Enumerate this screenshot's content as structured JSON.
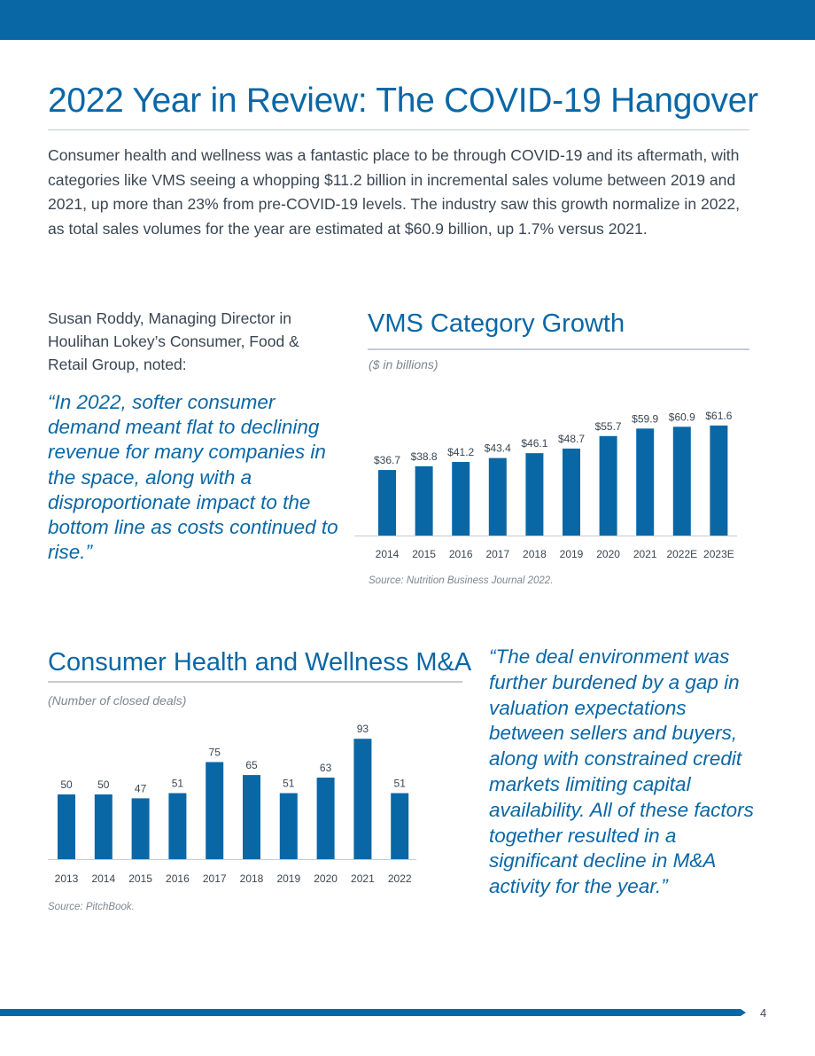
{
  "colors": {
    "accent": "#0a67a6",
    "rule": "#c5ccd3",
    "text": "#3a4652"
  },
  "page": {
    "title": "2022 Year in Review: The COVID-19 Hangover",
    "intro": "Consumer health and wellness was a fantastic place to be through COVID-19 and its aftermath, with categories like VMS seeing a whopping $11.2 billion in incremental sales volume between 2019 and 2021, up more than 23% from pre-COVID-19 levels. The industry saw this growth normalize in 2022, as total sales volumes for the year are estimated at $60.9 billion, up 1.7% versus 2021.",
    "attribution": "Susan Roddy, Managing Director in Houlihan Lokey’s Consumer, Food & Retail Group, noted:",
    "quote1": "“In 2022, softer consumer demand meant flat to declining revenue for many companies in the space, along with a disproportionate impact to the bottom line as costs continued to rise.”",
    "quote2": "“The deal environment was further burdened by a gap in valuation expectations between sellers and buyers, along with constrained credit markets limiting capital availability. All of these factors together resulted in a significant decline in M&A activity for the year.”",
    "page_number": "4"
  },
  "chart_data": [
    {
      "type": "bar",
      "title": "VMS Category Growth",
      "subtitle": "($ in billions)",
      "source": "Source: Nutrition Business Journal 2022.",
      "categories": [
        "2014",
        "2015",
        "2016",
        "2017",
        "2018",
        "2019",
        "2020",
        "2021",
        "2022E",
        "2023E"
      ],
      "values": [
        36.7,
        38.8,
        41.2,
        43.4,
        46.1,
        48.7,
        55.7,
        59.9,
        60.9,
        61.6
      ],
      "labels": [
        "$36.7",
        "$38.8",
        "$41.2",
        "$43.4",
        "$46.1",
        "$48.7",
        "$55.7",
        "$59.9",
        "$60.9",
        "$61.6"
      ],
      "ylim": [
        0,
        70
      ],
      "xlabel": "",
      "ylabel": "",
      "grid": false
    },
    {
      "type": "bar",
      "title": "Consumer Health and Wellness M&A",
      "subtitle": "(Number of closed deals)",
      "source": "Source: PitchBook.",
      "categories": [
        "2013",
        "2014",
        "2015",
        "2016",
        "2017",
        "2018",
        "2019",
        "2020",
        "2021",
        "2022"
      ],
      "values": [
        50,
        50,
        47,
        51,
        75,
        65,
        51,
        63,
        93,
        51
      ],
      "labels": [
        "50",
        "50",
        "47",
        "51",
        "75",
        "65",
        "51",
        "63",
        "93",
        "51"
      ],
      "ylim": [
        0,
        100
      ],
      "xlabel": "",
      "ylabel": "",
      "grid": false
    }
  ]
}
